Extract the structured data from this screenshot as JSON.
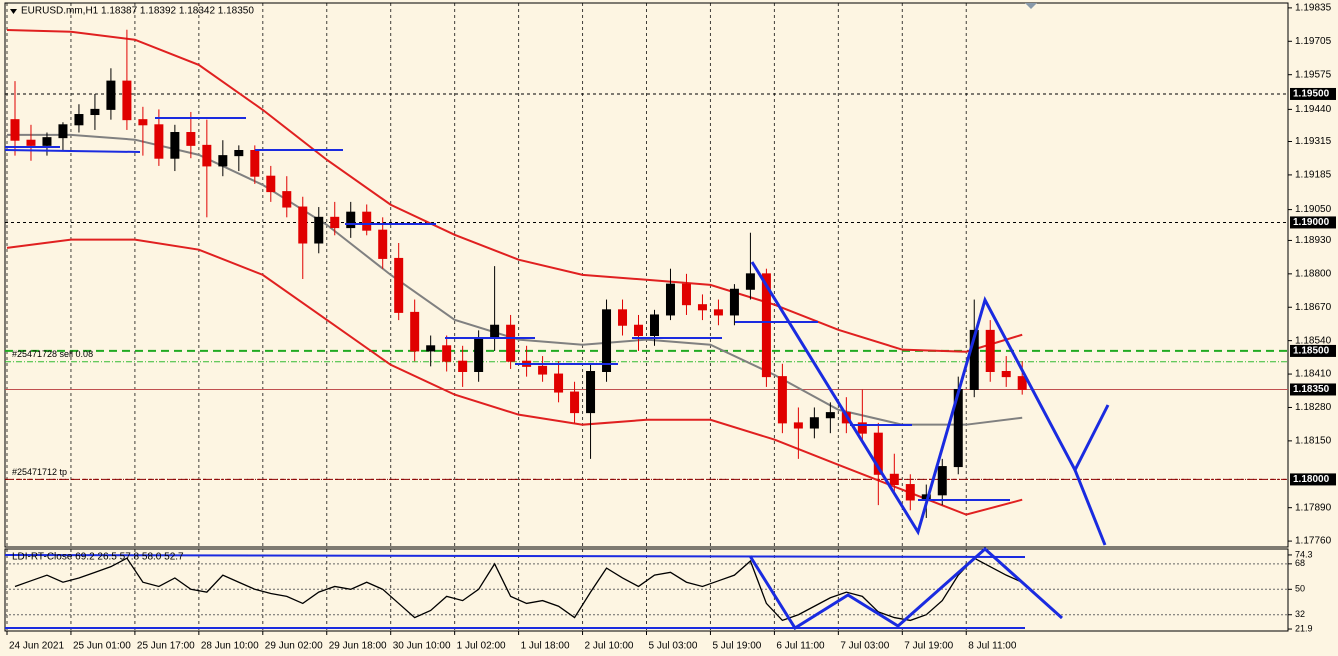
{
  "chart_data": {
    "type": "candlestick",
    "title": "EURUSD.mm,H1  1.18387 1.18392 1.18342 1.18350",
    "background": "#fdf5e2",
    "up_color": "#000000",
    "down_color": "#e00000",
    "xlim": [
      -0.5,
      320.5
    ],
    "ylim": [
      1.17737,
      1.19854
    ],
    "yticks": [
      1.19835,
      1.19705,
      1.19575,
      {
        "value": 1.1944,
        "label": "1.19440"
      },
      1.19315,
      1.19185,
      {
        "value": 1.1905,
        "label": "1.19050"
      },
      {
        "value": 1.1893,
        "label": "1.18930"
      },
      {
        "value": 1.188,
        "label": "1.18800"
      },
      {
        "value": 1.1867,
        "label": "1.18670"
      },
      {
        "value": 1.1854,
        "label": "1.18540"
      },
      {
        "value": 1.1841,
        "label": "1.18410"
      },
      {
        "value": 1.1828,
        "label": "1.18280"
      },
      {
        "value": 1.1815,
        "label": "1.18150"
      },
      {
        "value": 1.1789,
        "label": "1.17890"
      },
      {
        "value": 1.1776,
        "label": "1.17760"
      }
    ],
    "xticks": [
      {
        "value": 0,
        "label": "24 Jun 2021"
      },
      {
        "value": 16,
        "label": "25 Jun 01:00"
      },
      {
        "value": 32,
        "label": "25 Jun 17:00"
      },
      {
        "value": 48,
        "label": "28 Jun 10:00"
      },
      {
        "value": 64,
        "label": "29 Jun 02:00"
      },
      {
        "value": 80,
        "label": "29 Jun 18:00"
      },
      {
        "value": 96,
        "label": "30 Jun 10:00"
      },
      {
        "value": 112,
        "label": "1 Jul 02:00"
      },
      {
        "value": 128,
        "label": "1 Jul 18:00"
      },
      {
        "value": 144,
        "label": "2 Jul 10:00"
      },
      {
        "value": 160,
        "label": "5 Jul 03:00"
      },
      {
        "value": 176,
        "label": "5 Jul 19:00"
      },
      {
        "value": 192,
        "label": "6 Jul 11:00"
      },
      {
        "value": 208,
        "label": "7 Jul 03:00"
      },
      {
        "value": 224,
        "label": "7 Jul 19:00"
      },
      {
        "value": 240,
        "label": "8 Jul 11:00"
      }
    ],
    "levels": [
      {
        "value": 1.195,
        "label": "1.19500",
        "color": "#000000",
        "dash": true
      },
      {
        "value": 1.19,
        "label": "1.19000",
        "color": "#000000",
        "dash": true
      },
      {
        "value": 1.185,
        "label": "1.18500",
        "color": "#22aa22",
        "dash": true
      },
      {
        "value": 1.1835,
        "label": "1.18350",
        "color": "#c05050",
        "dash": false
      },
      {
        "value": 1.18,
        "label": "1.18000",
        "color": "#8b0000",
        "dash": true
      }
    ],
    "orders": [
      {
        "value": 1.18458,
        "label": "#25471728 sell 0.08",
        "color": "#33bb33"
      },
      {
        "value": 1.18,
        "label": "#25471712 tp",
        "color": "#8b0000"
      }
    ],
    "x": [
      2,
      6,
      10,
      14,
      18,
      22,
      26,
      30,
      34,
      38,
      42,
      46,
      50,
      54,
      58,
      62,
      66,
      70,
      74,
      78,
      82,
      86,
      90,
      94,
      98,
      102,
      106,
      110,
      114,
      118,
      122,
      126,
      130,
      134,
      138,
      142,
      146,
      150,
      154,
      158,
      162,
      166,
      170,
      174,
      178,
      182,
      186,
      190,
      194,
      198,
      202,
      206,
      210,
      214,
      218,
      222,
      226,
      230,
      234,
      238,
      242,
      246,
      250,
      254
    ],
    "ohlc": [
      [
        1.194,
        1.1955,
        1.1926,
        1.1932
      ],
      [
        1.1932,
        1.1938,
        1.1924,
        1.193
      ],
      [
        1.193,
        1.1935,
        1.1926,
        1.1933
      ],
      [
        1.1933,
        1.1939,
        1.1928,
        1.1938
      ],
      [
        1.1938,
        1.1946,
        1.1935,
        1.1942
      ],
      [
        1.1942,
        1.195,
        1.1936,
        1.1944
      ],
      [
        1.1944,
        1.196,
        1.194,
        1.1955
      ],
      [
        1.1955,
        1.1975,
        1.1936,
        1.194
      ],
      [
        1.194,
        1.1945,
        1.1926,
        1.1938
      ],
      [
        1.1938,
        1.1944,
        1.1922,
        1.1925
      ],
      [
        1.1925,
        1.1938,
        1.192,
        1.1935
      ],
      [
        1.1935,
        1.1943,
        1.1925,
        1.193
      ],
      [
        1.193,
        1.194,
        1.1902,
        1.1922
      ],
      [
        1.1922,
        1.1932,
        1.1918,
        1.1926
      ],
      [
        1.1926,
        1.193,
        1.192,
        1.1928
      ],
      [
        1.1928,
        1.193,
        1.1915,
        1.1918
      ],
      [
        1.1918,
        1.1922,
        1.1908,
        1.1912
      ],
      [
        1.1912,
        1.1918,
        1.1902,
        1.1906
      ],
      [
        1.1906,
        1.191,
        1.1878,
        1.1892
      ],
      [
        1.1892,
        1.1906,
        1.1888,
        1.1902
      ],
      [
        1.1902,
        1.1908,
        1.1895,
        1.1898
      ],
      [
        1.1898,
        1.1908,
        1.1894,
        1.1904
      ],
      [
        1.1904,
        1.1907,
        1.1895,
        1.1897
      ],
      [
        1.1897,
        1.1902,
        1.1882,
        1.1886
      ],
      [
        1.1886,
        1.1892,
        1.1862,
        1.1865
      ],
      [
        1.1865,
        1.187,
        1.1846,
        1.185
      ],
      [
        1.185,
        1.1856,
        1.1844,
        1.1852
      ],
      [
        1.1852,
        1.1856,
        1.1842,
        1.1846
      ],
      [
        1.1846,
        1.1852,
        1.1836,
        1.1842
      ],
      [
        1.1842,
        1.1858,
        1.1838,
        1.1855
      ],
      [
        1.1855,
        1.1883,
        1.185,
        1.186
      ],
      [
        1.186,
        1.1864,
        1.1843,
        1.1846
      ],
      [
        1.1846,
        1.1852,
        1.184,
        1.1844
      ],
      [
        1.1844,
        1.1848,
        1.1838,
        1.1841
      ],
      [
        1.1841,
        1.1846,
        1.183,
        1.1834
      ],
      [
        1.1834,
        1.1838,
        1.1822,
        1.1826
      ],
      [
        1.1826,
        1.1845,
        1.1808,
        1.1842
      ],
      [
        1.1842,
        1.187,
        1.1838,
        1.1866
      ],
      [
        1.1866,
        1.187,
        1.1856,
        1.186
      ],
      [
        1.186,
        1.1864,
        1.185,
        1.1856
      ],
      [
        1.1856,
        1.1866,
        1.1852,
        1.1864
      ],
      [
        1.1864,
        1.1882,
        1.1862,
        1.1876
      ],
      [
        1.1876,
        1.188,
        1.1864,
        1.1868
      ],
      [
        1.1868,
        1.1872,
        1.1862,
        1.1866
      ],
      [
        1.1866,
        1.187,
        1.186,
        1.1864
      ],
      [
        1.1864,
        1.1876,
        1.186,
        1.1874
      ],
      [
        1.1874,
        1.1896,
        1.187,
        1.188
      ],
      [
        1.188,
        1.1882,
        1.1836,
        1.184
      ],
      [
        1.184,
        1.1845,
        1.1818,
        1.1822
      ],
      [
        1.1822,
        1.1828,
        1.1808,
        1.182
      ],
      [
        1.182,
        1.1828,
        1.1816,
        1.1824
      ],
      [
        1.1824,
        1.183,
        1.1818,
        1.1826
      ],
      [
        1.1826,
        1.1832,
        1.1818,
        1.1822
      ],
      [
        1.1822,
        1.1835,
        1.1815,
        1.1818
      ],
      [
        1.1818,
        1.1822,
        1.179,
        1.1802
      ],
      [
        1.1802,
        1.181,
        1.1795,
        1.1798
      ],
      [
        1.1798,
        1.1802,
        1.1788,
        1.1792
      ],
      [
        1.1792,
        1.1798,
        1.1785,
        1.1794
      ],
      [
        1.1794,
        1.1808,
        1.179,
        1.1805
      ],
      [
        1.1805,
        1.184,
        1.1802,
        1.1835
      ],
      [
        1.1835,
        1.187,
        1.1832,
        1.1858
      ],
      [
        1.1858,
        1.1862,
        1.1838,
        1.1842
      ],
      [
        1.1842,
        1.1848,
        1.1836,
        1.184
      ],
      [
        1.184,
        1.1846,
        1.1833,
        1.1835
      ]
    ],
    "overlays": [
      {
        "color": "#e02020",
        "x": [
          0,
          16,
          32,
          48,
          64,
          80,
          96,
          112,
          128,
          144,
          160,
          176,
          192,
          208,
          224,
          240,
          254
        ],
        "values": [
          1.19749,
          1.19742,
          1.19711,
          1.19613,
          1.19438,
          1.19244,
          1.19069,
          1.18952,
          1.18855,
          1.18796,
          1.18777,
          1.18757,
          1.1868,
          1.18582,
          1.18505,
          1.18497,
          1.18563
        ]
      },
      {
        "color": "#808080",
        "x": [
          0,
          16,
          32,
          48,
          64,
          80,
          96,
          112,
          128,
          144,
          160,
          176,
          192,
          208,
          224,
          240,
          254
        ],
        "values": [
          1.19341,
          1.19341,
          1.19322,
          1.19263,
          1.19146,
          1.18991,
          1.18796,
          1.18621,
          1.18544,
          1.18524,
          1.18544,
          1.18524,
          1.18407,
          1.18271,
          1.18213,
          1.18213,
          1.1824
        ]
      },
      {
        "color": "#e02020",
        "x": [
          0,
          16,
          32,
          48,
          64,
          80,
          96,
          112,
          128,
          144,
          160,
          176,
          192,
          208,
          224,
          240,
          254
        ],
        "values": [
          1.18901,
          1.18933,
          1.18933,
          1.18894,
          1.18796,
          1.18621,
          1.18446,
          1.1833,
          1.18252,
          1.18213,
          1.18232,
          1.18232,
          1.18155,
          1.18057,
          1.1796,
          1.17863,
          1.17921
        ]
      }
    ],
    "indicator": {
      "title": "LDI-RT-Close 69.2 26.5 57.8 58.0 52.7",
      "color": "#000000",
      "ylim": [
        20.5,
        78.5
      ],
      "yticks": [
        74.3,
        68,
        50,
        32,
        21.9
      ],
      "values": [
        52,
        56,
        60,
        55,
        58,
        62,
        66,
        72,
        55,
        52,
        58,
        50,
        48,
        60,
        55,
        50,
        47,
        45,
        40,
        48,
        52,
        50,
        55,
        50,
        40,
        30,
        35,
        45,
        42,
        50,
        68,
        45,
        40,
        42,
        38,
        30,
        48,
        65,
        58,
        52,
        60,
        62,
        55,
        52,
        56,
        60,
        70,
        40,
        28,
        32,
        38,
        44,
        48,
        45,
        34,
        30,
        28,
        32,
        42,
        60,
        72,
        66,
        60,
        55
      ]
    }
  }
}
